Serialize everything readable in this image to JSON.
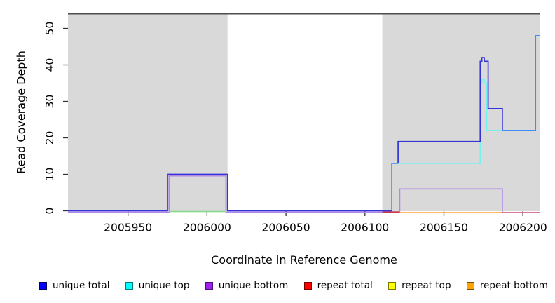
{
  "chart_data": {
    "type": "line",
    "title": "",
    "xlabel": "Coordinate in Reference Genome",
    "ylabel": "Read Coverage Depth",
    "xlim": [
      2005912,
      2006211
    ],
    "ylim": [
      0,
      54
    ],
    "x_ticks": [
      "2005950",
      "2006000",
      "2006050",
      "2006100",
      "2006150",
      "2006200"
    ],
    "x_tick_values": [
      2005950,
      2006000,
      2006050,
      2006100,
      2006150,
      2006200
    ],
    "y_ticks": [
      "0",
      "10",
      "20",
      "30",
      "40",
      "50"
    ],
    "y_tick_values": [
      0,
      10,
      20,
      30,
      40,
      50
    ],
    "grid": "off",
    "legend_position": "bottom",
    "band_color": "#D9D9D9",
    "background_bands": [
      {
        "name": "left-shaded-region",
        "from": 2005912,
        "to": 2006013
      },
      {
        "name": "right-shaded-region",
        "from": 2006111,
        "to": 2006211
      }
    ],
    "top_line": {
      "level": 54,
      "color": "#4D4D4D"
    },
    "series": [
      {
        "name": "unique total",
        "color": "#0000FF",
        "steps": [
          [
            2005912,
            0
          ],
          [
            2005975,
            10
          ],
          [
            2006013,
            0
          ],
          [
            2006117,
            13
          ],
          [
            2006121,
            19
          ],
          [
            2006173,
            41
          ],
          [
            2006174,
            42
          ],
          [
            2006176,
            41
          ],
          [
            2006178,
            28
          ],
          [
            2006187,
            22
          ],
          [
            2006208,
            48
          ],
          [
            2006211,
            48
          ]
        ]
      },
      {
        "name": "unique top",
        "color": "#00FFFF",
        "steps": [
          [
            2005912,
            0
          ],
          [
            2006117,
            13
          ],
          [
            2006173,
            35
          ],
          [
            2006174,
            36
          ],
          [
            2006176,
            35
          ],
          [
            2006177,
            22
          ],
          [
            2006208,
            48
          ],
          [
            2006211,
            48
          ]
        ]
      },
      {
        "name": "unique bottom",
        "color": "#A020F0",
        "steps": [
          [
            2005912,
            0
          ],
          [
            2005976,
            10
          ],
          [
            2006012,
            0
          ],
          [
            2006122,
            6
          ],
          [
            2006187,
            0
          ],
          [
            2006211,
            0
          ]
        ]
      },
      {
        "name": "repeat total",
        "color": "#FF0000",
        "steps": [
          [
            2005912,
            0
          ],
          [
            2006211,
            0
          ]
        ]
      },
      {
        "name": "repeat top",
        "color": "#FFFF00",
        "steps": [
          [
            2005912,
            0
          ],
          [
            2006211,
            0
          ]
        ]
      },
      {
        "name": "repeat bottom",
        "color": "#FFA500",
        "steps": [
          [
            2005912,
            0
          ],
          [
            2006211,
            0
          ]
        ]
      }
    ],
    "render_paths": [
      {
        "name": "unique-bottom-line",
        "color": "#B287E6",
        "points": [
          [
            2005912,
            -0.4
          ],
          [
            2005976,
            -0.4
          ],
          [
            2005976,
            9.6
          ],
          [
            2006012,
            9.6
          ],
          [
            2006012,
            -0.4
          ],
          [
            2006122,
            -0.4
          ],
          [
            2006122,
            6
          ],
          [
            2006187,
            6
          ],
          [
            2006187,
            -0.4
          ]
        ]
      },
      {
        "name": "top-overlap-green-line",
        "color": "#8FD98F",
        "points": [
          [
            2005976,
            -0.2
          ],
          [
            2006012,
            -0.2
          ]
        ]
      },
      {
        "name": "repeat-total-segment",
        "color": "#C63A4E",
        "points": [
          [
            2006111,
            -0.3
          ],
          [
            2006122,
            -0.3
          ]
        ]
      },
      {
        "name": "repeat-bottom-segment",
        "color": "#FFA033",
        "points": [
          [
            2006122,
            -0.5
          ],
          [
            2006187,
            -0.5
          ]
        ]
      },
      {
        "name": "red-purple-overlap-segment",
        "color": "#D14B73",
        "points": [
          [
            2006187,
            -0.5
          ],
          [
            2006211,
            -0.5
          ]
        ]
      },
      {
        "name": "unique-top-line",
        "color": "#76EFEF",
        "points": [
          [
            2006121,
            13
          ],
          [
            2006173,
            13
          ],
          [
            2006173,
            35
          ],
          [
            2006174,
            35
          ],
          [
            2006174,
            36
          ],
          [
            2006175.5,
            36
          ],
          [
            2006175.5,
            35
          ],
          [
            2006177,
            35
          ],
          [
            2006177,
            22
          ],
          [
            2006187,
            22
          ]
        ]
      },
      {
        "name": "unique-total-left",
        "color": "#3434D6",
        "points": [
          [
            2005912,
            0
          ],
          [
            2005975,
            0
          ],
          [
            2005975,
            10
          ],
          [
            2006013,
            10
          ],
          [
            2006013,
            0
          ],
          [
            2006117,
            0
          ]
        ]
      },
      {
        "name": "unique-total-right",
        "color": "#3434D6",
        "points": [
          [
            2006121,
            13
          ],
          [
            2006121,
            19
          ],
          [
            2006173,
            19
          ],
          [
            2006173,
            41
          ],
          [
            2006174,
            41
          ],
          [
            2006174,
            42
          ],
          [
            2006175.5,
            42
          ],
          [
            2006175.5,
            41
          ],
          [
            2006178,
            41
          ],
          [
            2006178,
            28
          ],
          [
            2006187,
            28
          ],
          [
            2006187,
            22
          ]
        ]
      },
      {
        "name": "blue-cyan-overlap-rise",
        "color": "#3F8CFF",
        "points": [
          [
            2006117,
            0
          ],
          [
            2006117,
            13
          ],
          [
            2006121,
            13
          ]
        ]
      },
      {
        "name": "blue-cyan-overlap-end",
        "color": "#3F8CFF",
        "points": [
          [
            2006187,
            22
          ],
          [
            2006208,
            22
          ],
          [
            2006208,
            48
          ],
          [
            2006211,
            48
          ]
        ]
      }
    ]
  },
  "legend": {
    "items": [
      {
        "label": "unique total",
        "fill": "#0000FF",
        "border": "#000060"
      },
      {
        "label": "unique top",
        "fill": "#00FFFF",
        "border": "#007A7A"
      },
      {
        "label": "unique bottom",
        "fill": "#A020F0",
        "border": "#4B0F75"
      },
      {
        "label": "repeat total",
        "fill": "#FF0000",
        "border": "#7A0000"
      },
      {
        "label": "repeat top",
        "fill": "#FFFF00",
        "border": "#7A7A00"
      },
      {
        "label": "repeat bottom",
        "fill": "#FFA500",
        "border": "#7A5200"
      }
    ]
  }
}
